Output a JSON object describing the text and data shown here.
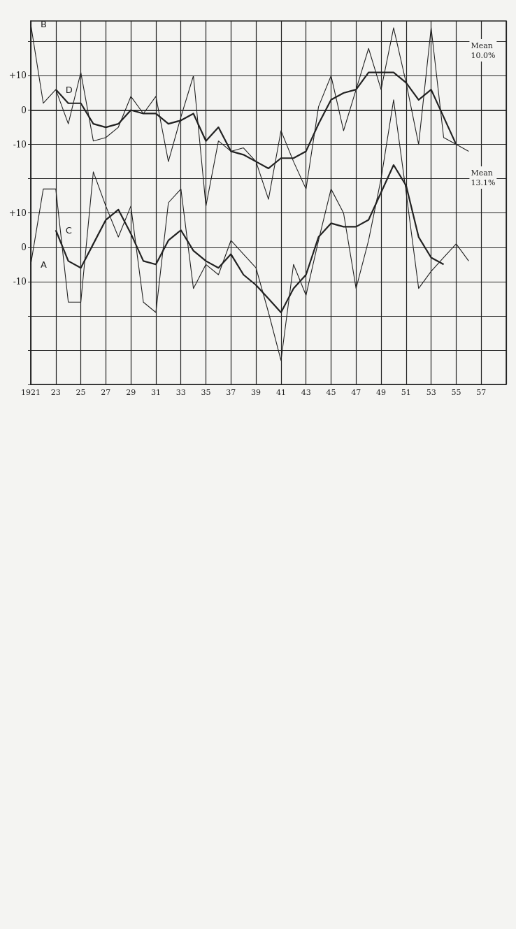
{
  "chart_data": {
    "type": "line",
    "x": [
      1921,
      1922,
      1923,
      1924,
      1925,
      1926,
      1927,
      1928,
      1929,
      1930,
      1931,
      1932,
      1933,
      1934,
      1935,
      1936,
      1937,
      1938,
      1939,
      1940,
      1941,
      1942,
      1943,
      1944,
      1945,
      1946,
      1947,
      1948,
      1949,
      1950,
      1951,
      1952,
      1953,
      1954,
      1955,
      1956
    ],
    "xlim": [
      1921,
      1959
    ],
    "xticks": [
      {
        "value": 1921,
        "label": "1921"
      },
      {
        "value": 1923,
        "label": "23"
      },
      {
        "value": 1925,
        "label": "25"
      },
      {
        "value": 1927,
        "label": "27"
      },
      {
        "value": 1929,
        "label": "29"
      },
      {
        "value": 1931,
        "label": "31"
      },
      {
        "value": 1933,
        "label": "33"
      },
      {
        "value": 1935,
        "label": "35"
      },
      {
        "value": 1937,
        "label": "37"
      },
      {
        "value": 1939,
        "label": "39"
      },
      {
        "value": 1941,
        "label": "41"
      },
      {
        "value": 1943,
        "label": "43"
      },
      {
        "value": 1945,
        "label": "45"
      },
      {
        "value": 1947,
        "label": "47"
      },
      {
        "value": 1949,
        "label": "49"
      },
      {
        "value": 1951,
        "label": "51"
      },
      {
        "value": 1953,
        "label": "53"
      },
      {
        "value": 1955,
        "label": "55"
      },
      {
        "value": 1957,
        "label": "57"
      },
      {
        "value": 1959,
        "label": null
      }
    ],
    "ylim": [
      -80,
      26
    ],
    "yticks": [
      {
        "value": 20,
        "label": null
      },
      {
        "value": 10,
        "label": "+10"
      },
      0,
      {
        "value": -10,
        "label": "-10"
      },
      {
        "value": -20,
        "label": null
      },
      {
        "value": -30,
        "label": null
      },
      {
        "value": -40,
        "label": null
      },
      {
        "value": -50,
        "label": null
      },
      {
        "value": -60,
        "label": null
      },
      {
        "value": -70,
        "label": null
      },
      {
        "value": -80,
        "label": null
      }
    ],
    "y2lim": [
      -40,
      66
    ],
    "y2ticks": [
      {
        "value": 10,
        "label": "+10"
      },
      0,
      {
        "value": -10,
        "label": "-10"
      }
    ],
    "grid": true,
    "annotations": [
      "Mean 10.0%",
      "Mean 13.1%"
    ],
    "series": [
      {
        "name": "B",
        "color": "#222222",
        "values": [
          25,
          2,
          6,
          -4,
          11,
          -9,
          -8,
          -5,
          4,
          -1,
          4,
          -15,
          -2,
          10,
          -28,
          -9,
          -12,
          -11,
          -15,
          -26,
          -6,
          -15,
          -23,
          1,
          10,
          -6,
          6,
          18,
          6,
          24,
          8,
          -10,
          24,
          -8,
          -10,
          -12
        ]
      },
      {
        "name": "D",
        "color": "#222222",
        "values": [
          null,
          null,
          6,
          2,
          2,
          -4,
          -5,
          -4,
          0,
          -1,
          -1,
          -4,
          -3,
          -1,
          -9,
          -5,
          -12,
          -13,
          -15,
          -17,
          -14,
          -14,
          -12,
          -4,
          3,
          5,
          6,
          11,
          11,
          11,
          8,
          3,
          6,
          -2,
          -10,
          null
        ]
      },
      {
        "name": "A",
        "color": "#222222",
        "axis": "y2",
        "values": [
          -5,
          17,
          17,
          -16,
          -16,
          22,
          12,
          3,
          12,
          -16,
          -19,
          13,
          17,
          -12,
          -5,
          -8,
          2,
          -2,
          -6,
          -19,
          -33,
          -5,
          -14,
          2,
          17,
          10,
          -12,
          2,
          20,
          43,
          16,
          -12,
          -7,
          -3,
          1,
          -4
        ]
      },
      {
        "name": "C",
        "color": "#222222",
        "axis": "y2",
        "values": [
          null,
          null,
          5,
          -4,
          -6,
          1,
          8,
          11,
          4,
          -4,
          -5,
          2,
          5,
          -1,
          -4,
          -6,
          -2,
          -8,
          -11,
          -15,
          -19,
          -12,
          -8,
          3,
          7,
          6,
          6,
          8,
          16,
          24,
          18,
          3,
          -3,
          -5,
          null,
          null
        ]
      }
    ]
  }
}
